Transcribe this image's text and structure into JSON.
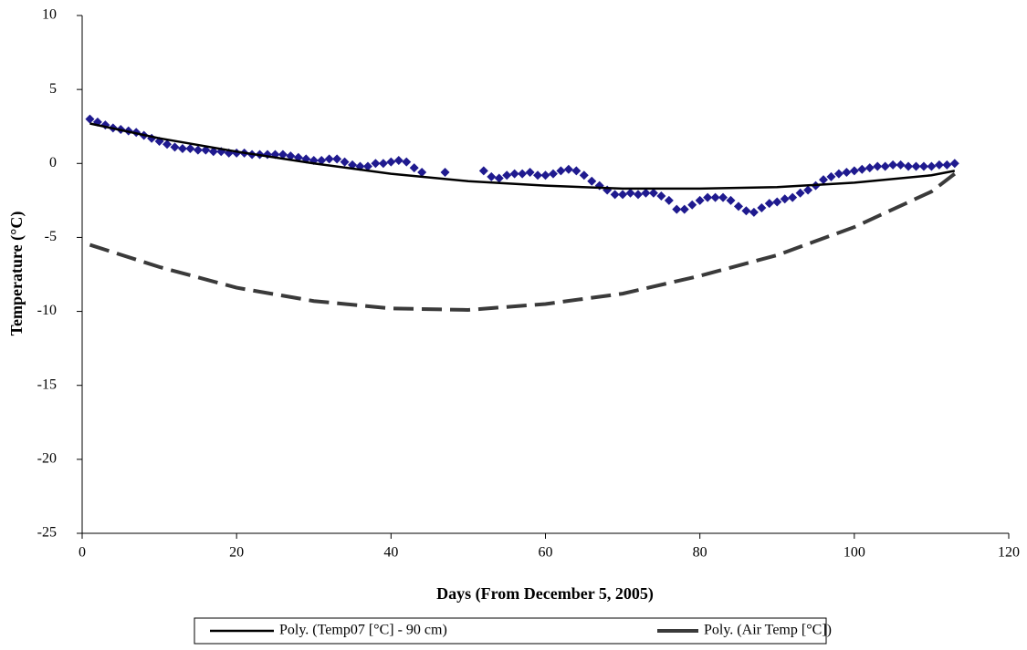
{
  "chart_data": {
    "type": "scatter",
    "x_label": "Days (From December 5, 2005)",
    "y_label": "Temperature (°C)",
    "xlim": [
      0,
      120
    ],
    "xticks": [
      0,
      20,
      40,
      60,
      80,
      100,
      120
    ],
    "ylim": [
      -25,
      10
    ],
    "yticks": [
      -25,
      -20,
      -15,
      -10,
      -5,
      0,
      5,
      10
    ],
    "grid": false,
    "series": [
      {
        "style": "markers",
        "color": "#1f1a8f",
        "x": [
          1,
          2,
          3,
          4,
          5,
          6,
          7,
          8,
          9,
          10,
          11,
          12,
          13,
          14,
          15,
          16,
          17,
          18,
          19,
          20,
          21,
          22,
          23,
          24,
          25,
          26,
          27,
          28,
          29,
          30,
          31,
          32,
          33,
          34,
          35,
          36,
          37,
          38,
          39,
          40,
          41,
          42,
          43,
          44,
          47,
          52,
          53,
          54,
          55,
          56,
          57,
          58,
          59,
          60,
          61,
          62,
          63,
          64,
          65,
          66,
          67,
          68,
          69,
          70,
          71,
          72,
          73,
          74,
          75,
          76,
          77,
          78,
          79,
          80,
          81,
          82,
          83,
          84,
          85,
          86,
          87,
          88,
          89,
          90,
          91,
          92,
          93,
          94,
          95,
          96,
          97,
          98,
          99,
          100,
          101,
          102,
          103,
          104,
          105,
          106,
          107,
          108,
          109,
          110,
          111,
          112,
          113
        ],
        "values": [
          3.0,
          2.8,
          2.6,
          2.4,
          2.3,
          2.2,
          2.1,
          1.9,
          1.7,
          1.5,
          1.3,
          1.1,
          1.0,
          1.0,
          0.9,
          0.9,
          0.8,
          0.8,
          0.7,
          0.7,
          0.7,
          0.6,
          0.6,
          0.6,
          0.6,
          0.6,
          0.5,
          0.4,
          0.3,
          0.2,
          0.2,
          0.3,
          0.3,
          0.1,
          -0.1,
          -0.2,
          -0.2,
          0.0,
          0.0,
          0.1,
          0.2,
          0.1,
          -0.3,
          -0.6,
          -0.6,
          -0.5,
          -0.9,
          -1.0,
          -0.8,
          -0.7,
          -0.7,
          -0.6,
          -0.8,
          -0.8,
          -0.7,
          -0.5,
          -0.4,
          -0.5,
          -0.8,
          -1.2,
          -1.5,
          -1.8,
          -2.1,
          -2.1,
          -2.0,
          -2.1,
          -2.0,
          -2.0,
          -2.2,
          -2.5,
          -3.1,
          -3.1,
          -2.8,
          -2.5,
          -2.3,
          -2.3,
          -2.3,
          -2.5,
          -2.9,
          -3.2,
          -3.3,
          -3.0,
          -2.7,
          -2.6,
          -2.4,
          -2.3,
          -2.0,
          -1.8,
          -1.5,
          -1.1,
          -0.9,
          -0.7,
          -0.6,
          -0.5,
          -0.4,
          -0.3,
          -0.2,
          -0.2,
          -0.1,
          -0.1,
          -0.2,
          -0.2,
          -0.2,
          -0.2,
          -0.1,
          -0.1,
          0.0
        ]
      },
      {
        "name": "Poly. (Temp07 [°C] - 90 cm)",
        "style": "solid",
        "color": "#000000",
        "x": [
          1,
          10,
          20,
          30,
          40,
          50,
          60,
          70,
          80,
          90,
          100,
          110,
          113
        ],
        "values": [
          2.7,
          1.7,
          0.8,
          0.0,
          -0.7,
          -1.2,
          -1.5,
          -1.7,
          -1.7,
          -1.6,
          -1.3,
          -0.8,
          -0.5
        ]
      },
      {
        "name": "Poly. (Air Temp [°C])",
        "style": "dashed",
        "color": "#3a3a3a",
        "x": [
          1,
          10,
          20,
          30,
          40,
          50,
          60,
          70,
          80,
          90,
          100,
          110,
          113
        ],
        "values": [
          -5.5,
          -7.0,
          -8.4,
          -9.3,
          -9.8,
          -9.9,
          -9.5,
          -8.8,
          -7.6,
          -6.2,
          -4.3,
          -1.9,
          -0.7
        ]
      }
    ]
  }
}
